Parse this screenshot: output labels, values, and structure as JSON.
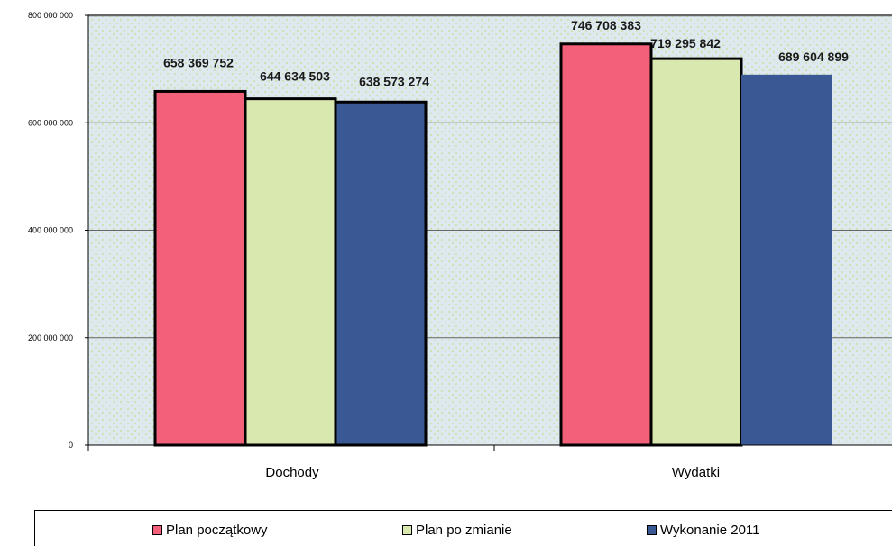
{
  "chart_data": {
    "type": "bar",
    "categories": [
      "Dochody",
      "Wydatki"
    ],
    "series": [
      {
        "name": "Plan początkowy",
        "color": "#f2607a",
        "values": [
          658369752,
          746708383
        ],
        "labels": [
          "658 369 752",
          "746 708 383"
        ]
      },
      {
        "name": "Plan po zmianie",
        "color": "#d8e8ae",
        "values": [
          644634503,
          719295842
        ],
        "labels": [
          "644 634 503",
          "719 295 842"
        ]
      },
      {
        "name": "Wykonanie 2011",
        "color": "#3a5894",
        "values": [
          638573274,
          689604899
        ],
        "labels": [
          "638 573 274",
          "689 604 899"
        ]
      }
    ],
    "ylim": [
      0,
      800000000
    ],
    "yticks": [
      0,
      200000000,
      400000000,
      600000000,
      800000000
    ],
    "ytick_labels": [
      "0",
      "200 000 000",
      "400 000 000",
      "600 000 000",
      "800 000 000"
    ],
    "grid": true,
    "legend_position": "bottom",
    "plot_background": "#dde9ee",
    "dot_color": "#c9dc8e"
  }
}
